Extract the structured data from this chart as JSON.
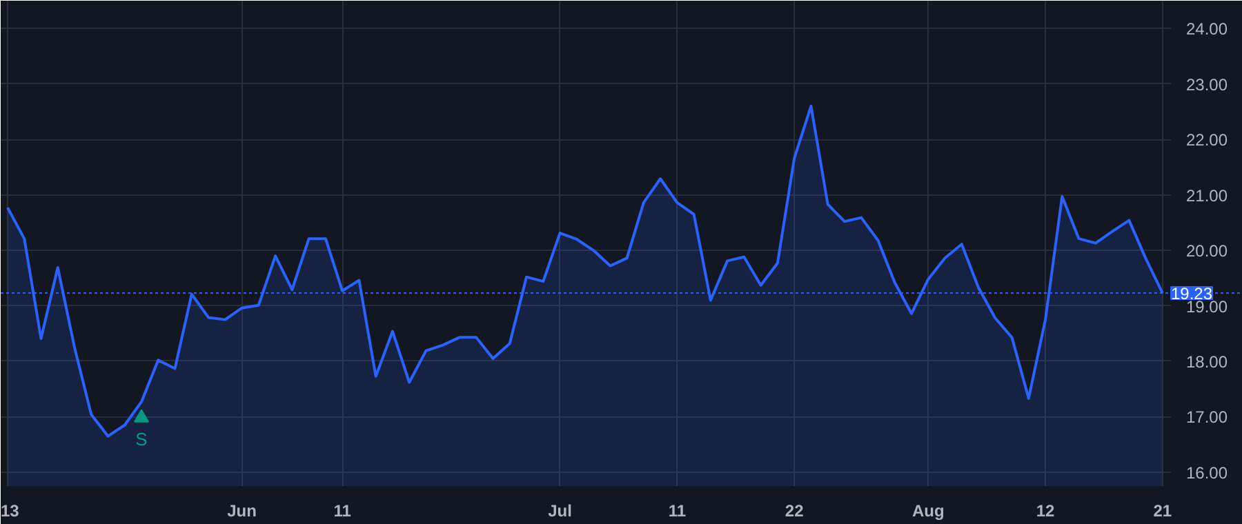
{
  "chart_data": {
    "type": "area",
    "categories": [
      "13",
      null,
      null,
      null,
      null,
      null,
      null,
      null,
      null,
      null,
      null,
      null,
      null,
      null,
      "Jun",
      null,
      null,
      null,
      null,
      null,
      "11",
      null,
      null,
      null,
      null,
      null,
      null,
      null,
      null,
      null,
      null,
      null,
      null,
      "Jul",
      null,
      null,
      null,
      null,
      null,
      null,
      "11",
      null,
      null,
      null,
      null,
      null,
      null,
      "22",
      null,
      null,
      null,
      null,
      null,
      null,
      null,
      "Aug",
      null,
      null,
      null,
      null,
      null,
      null,
      "12",
      null,
      null,
      null,
      null,
      null,
      null,
      "21"
    ],
    "series": [
      {
        "color": "#2962ff",
        "values": [
          20.77,
          20.21,
          18.41,
          19.69,
          18.25,
          17.04,
          16.65,
          16.85,
          17.27,
          18.02,
          17.87,
          19.21,
          18.79,
          18.75,
          18.96,
          19.01,
          19.9,
          19.29,
          20.21,
          20.21,
          19.27,
          19.46,
          17.73,
          18.54,
          17.62,
          18.19,
          18.29,
          18.43,
          18.43,
          18.05,
          18.32,
          19.52,
          19.44,
          20.31,
          20.2,
          20.0,
          19.72,
          19.86,
          20.86,
          21.29,
          20.86,
          20.65,
          19.1,
          19.81,
          19.88,
          19.37,
          19.77,
          21.66,
          22.6,
          20.83,
          20.52,
          20.59,
          20.18,
          19.42,
          18.86,
          19.48,
          19.86,
          20.11,
          19.33,
          18.78,
          18.43,
          17.33,
          18.75,
          20.97,
          20.21,
          20.13,
          20.34,
          20.54,
          19.85,
          19.23
        ]
      },
      {
        "type": "scatter",
        "marker": "triangle",
        "color": "#089981",
        "values": [
          null,
          null,
          null,
          null,
          null,
          null,
          null,
          null,
          16.98,
          null,
          null,
          null,
          null,
          null,
          null,
          null,
          null,
          null,
          null,
          null,
          null,
          null,
          null,
          null,
          null,
          null,
          null,
          null,
          null,
          null,
          null,
          null,
          null,
          null,
          null,
          null,
          null,
          null,
          null,
          null,
          null,
          null,
          null,
          null,
          null,
          null,
          null,
          null,
          null,
          null,
          null,
          null,
          null,
          null,
          null,
          null,
          null,
          null,
          null,
          null,
          null,
          null,
          null,
          null,
          null,
          null,
          null,
          null,
          null,
          null
        ],
        "value_labels": [
          null,
          null,
          null,
          null,
          null,
          null,
          null,
          null,
          "S",
          null,
          null,
          null,
          null,
          null,
          null,
          null,
          null,
          null,
          null,
          null,
          null,
          null,
          null,
          null,
          null,
          null,
          null,
          null,
          null,
          null,
          null,
          null,
          null,
          null,
          null,
          null,
          null,
          null,
          null,
          null,
          null,
          null,
          null,
          null,
          null,
          null,
          null,
          null,
          null,
          null,
          null,
          null,
          null,
          null,
          null,
          null,
          null,
          null,
          null,
          null,
          null,
          null,
          null,
          null,
          null,
          null,
          null,
          null,
          null,
          null
        ]
      }
    ],
    "ylim": [
      15.75,
      24.5
    ],
    "yticks": [
      {
        "value": 16,
        "label": "16.00"
      },
      {
        "value": 17,
        "label": "17.00"
      },
      {
        "value": 18,
        "label": "18.00"
      },
      {
        "value": 19,
        "label": "19.00"
      },
      {
        "value": 20,
        "label": "20.00"
      },
      {
        "value": 21,
        "label": "21.00"
      },
      {
        "value": 22,
        "label": "22.00"
      },
      {
        "value": 23,
        "label": "23.00"
      },
      {
        "value": 24,
        "label": "24.00"
      }
    ],
    "ref_lines": [
      {
        "axis": "y",
        "value": 19.23,
        "label": "19.23",
        "color": "#2962ff",
        "line_style": "dotted"
      }
    ],
    "grid": true
  }
}
